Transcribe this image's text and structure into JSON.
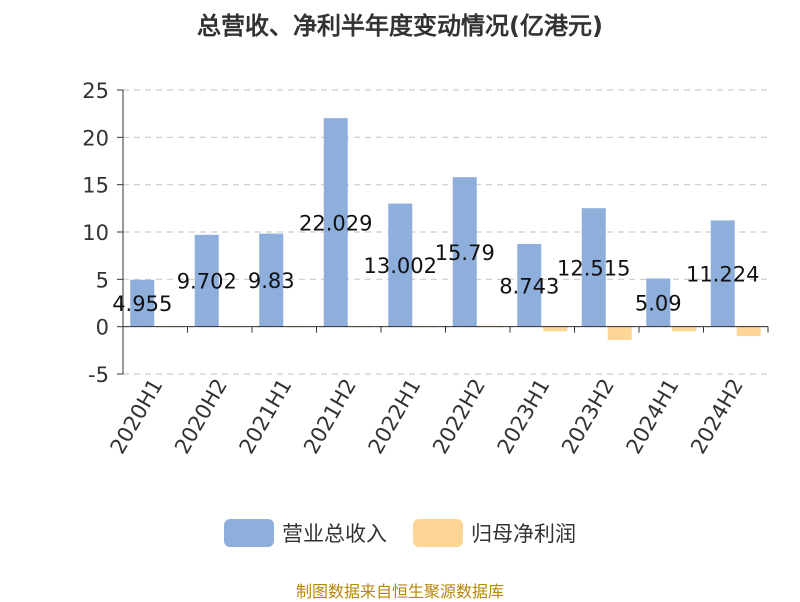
{
  "chart_data": {
    "type": "bar",
    "title": "总营收、净利半年度变动情况(亿港元)",
    "categories": [
      "2020H1",
      "2020H2",
      "2021H1",
      "2021H2",
      "2022H1",
      "2022H2",
      "2023H1",
      "2023H2",
      "2024H1",
      "2024H2"
    ],
    "series": [
      {
        "name": "营业总收入",
        "color": "#8eaedc",
        "values": [
          4.955,
          9.702,
          9.83,
          22.029,
          13.002,
          15.79,
          8.743,
          12.515,
          5.09,
          11.224
        ],
        "labels": [
          "4.955",
          "9.702",
          "9.83",
          "22.029",
          "13.002",
          "15.79",
          "8.743",
          "12.515",
          "5.09",
          "11.224"
        ]
      },
      {
        "name": "归母净利润",
        "color": "#fdd594",
        "values": [
          0.05,
          0.05,
          0.05,
          0.05,
          0.05,
          0.1,
          -0.5,
          -1.4,
          -0.5,
          -1.0
        ]
      }
    ],
    "ylim": [
      -5,
      25
    ],
    "yticks": [
      -5,
      0,
      5,
      10,
      15,
      20,
      25
    ],
    "grid": true,
    "legend_position": "bottom"
  },
  "source_note": "制图数据来自恒生聚源数据库"
}
